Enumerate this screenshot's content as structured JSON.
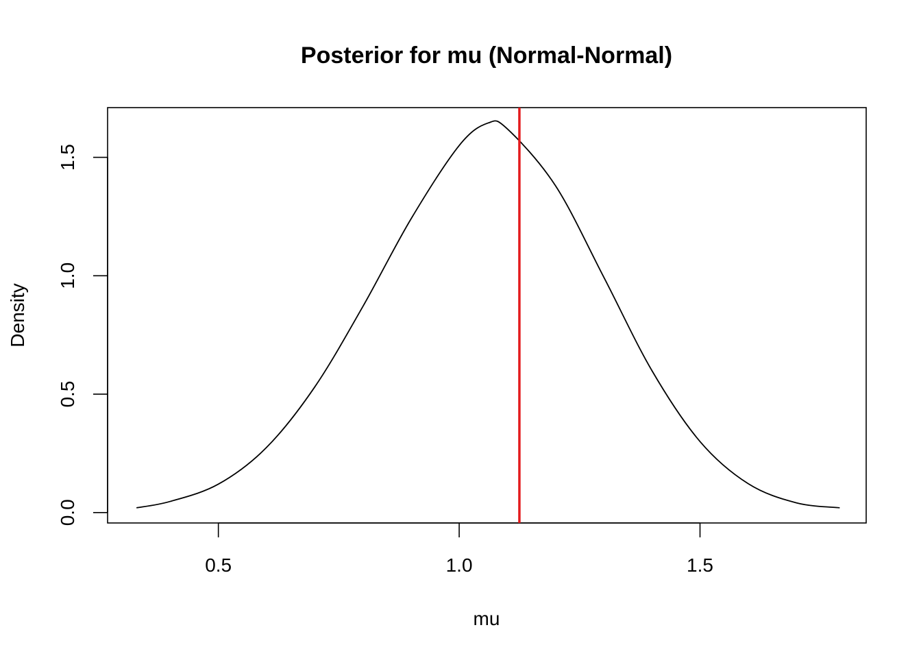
{
  "chart_data": {
    "type": "line",
    "title": "Posterior for mu (Normal-Normal)",
    "xlabel": "mu",
    "ylabel": "Density",
    "xlim": [
      0.27,
      1.845
    ],
    "ylim": [
      -0.044,
      1.71
    ],
    "x_ticks": [
      0.5,
      1.0,
      1.5
    ],
    "x_tick_labels": [
      "0.5",
      "1.0",
      "1.5"
    ],
    "y_ticks": [
      0.0,
      0.5,
      1.0,
      1.5
    ],
    "y_tick_labels": [
      "0.0",
      "0.5",
      "1.0",
      "1.5"
    ],
    "grid": false,
    "series": [
      {
        "color": "#000000",
        "x": [
          0.33,
          0.4,
          0.5,
          0.6,
          0.7,
          0.8,
          0.9,
          1.0,
          1.06,
          1.1,
          1.2,
          1.3,
          1.4,
          1.5,
          1.6,
          1.7,
          1.79
        ],
        "y": [
          0.02,
          0.047,
          0.12,
          0.275,
          0.53,
          0.87,
          1.24,
          1.55,
          1.645,
          1.62,
          1.38,
          0.995,
          0.6,
          0.3,
          0.122,
          0.041,
          0.02
        ]
      }
    ],
    "reference_line": {
      "x": 1.125,
      "color": "#e31a1c"
    }
  }
}
